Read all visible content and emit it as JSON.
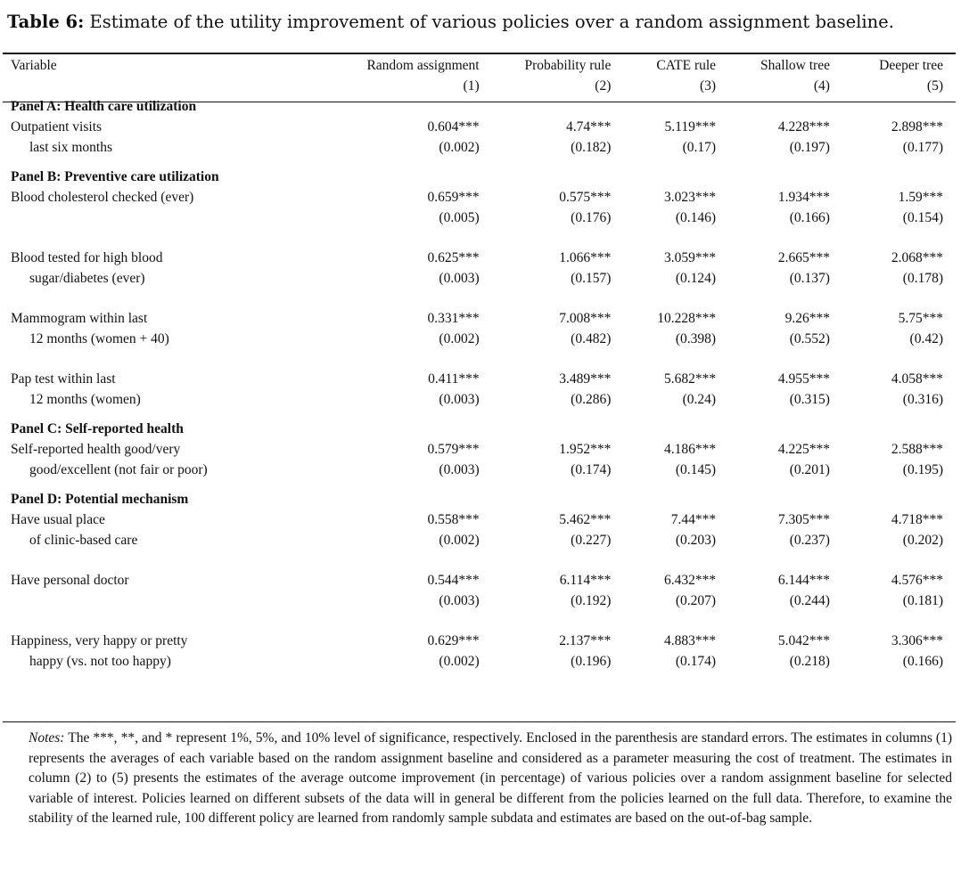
{
  "caption": {
    "label": "Table 6:",
    "text": "Estimate of the utility improvement of various policies over a random assignment baseline."
  },
  "header": {
    "variable": "Variable",
    "columns": [
      {
        "name": "Random assignment",
        "num": "(1)"
      },
      {
        "name": "Probability rule",
        "num": "(2)"
      },
      {
        "name": "CATE rule",
        "num": "(3)"
      },
      {
        "name": "Shallow tree",
        "num": "(4)"
      },
      {
        "name": "Deeper tree",
        "num": "(5)"
      }
    ]
  },
  "panels": [
    {
      "title": "Panel A: Health care utilization",
      "rows": [
        {
          "line1": "Outpatient visits",
          "line2": "last six months",
          "est": [
            "0.604***",
            "4.74***",
            "5.119***",
            "4.228***",
            "2.898***"
          ],
          "se": [
            "(0.002)",
            "(0.182)",
            "(0.17)",
            "(0.197)",
            "(0.177)"
          ]
        }
      ]
    },
    {
      "title": "Panel B: Preventive care utilization",
      "rows": [
        {
          "line1": "Blood cholesterol checked (ever)",
          "line2": "",
          "est": [
            "0.659***",
            "0.575***",
            "3.023***",
            "1.934***",
            "1.59***"
          ],
          "se": [
            "(0.005)",
            "(0.176)",
            "(0.146)",
            "(0.166)",
            "(0.154)"
          ]
        },
        {
          "line1": "Blood tested for high blood",
          "line2": "sugar/diabetes (ever)",
          "est": [
            "0.625***",
            "1.066***",
            "3.059***",
            "2.665***",
            "2.068***"
          ],
          "se": [
            "(0.003)",
            "(0.157)",
            "(0.124)",
            "(0.137)",
            "(0.178)"
          ]
        },
        {
          "line1": "Mammogram within last",
          "line2": "12 months (women + 40)",
          "est": [
            "0.331***",
            "7.008***",
            "10.228***",
            "9.26***",
            "5.75***"
          ],
          "se": [
            "(0.002)",
            "(0.482)",
            "(0.398)",
            "(0.552)",
            "(0.42)"
          ]
        },
        {
          "line1": "Pap test within last",
          "line2": "12 months (women)",
          "est": [
            "0.411***",
            "3.489***",
            "5.682***",
            "4.955***",
            "4.058***"
          ],
          "se": [
            "(0.003)",
            "(0.286)",
            "(0.24)",
            "(0.315)",
            "(0.316)"
          ]
        }
      ]
    },
    {
      "title": "Panel C: Self-reported health",
      "rows": [
        {
          "line1": "Self-reported health good/very",
          "line2": "good/excellent (not fair or poor)",
          "est": [
            "0.579***",
            "1.952***",
            "4.186***",
            "4.225***",
            "2.588***"
          ],
          "se": [
            "(0.003)",
            "(0.174)",
            "(0.145)",
            "(0.201)",
            "(0.195)"
          ]
        }
      ]
    },
    {
      "title": "Panel D: Potential mechanism",
      "rows": [
        {
          "line1": "Have usual place",
          "line2": "of clinic-based care",
          "est": [
            "0.558***",
            "5.462***",
            "7.44***",
            "7.305***",
            "4.718***"
          ],
          "se": [
            "(0.002)",
            "(0.227)",
            "(0.203)",
            "(0.237)",
            "(0.202)"
          ]
        },
        {
          "line1": "Have personal doctor",
          "line2": "",
          "est": [
            "0.544***",
            "6.114***",
            "6.432***",
            "6.144***",
            "4.576***"
          ],
          "se": [
            "(0.003)",
            "(0.192)",
            "(0.207)",
            "(0.244)",
            "(0.181)"
          ]
        },
        {
          "line1": "Happiness, very happy or pretty",
          "line2": "happy (vs. not too happy)",
          "est": [
            "0.629***",
            "2.137***",
            "4.883***",
            "5.042***",
            "3.306***"
          ],
          "se": [
            "(0.002)",
            "(0.196)",
            "(0.174)",
            "(0.218)",
            "(0.166)"
          ]
        }
      ]
    }
  ],
  "notes": {
    "label": "Notes:",
    "text": "The ***, **, and * represent 1%, 5%, and 10% level of significance, respectively. Enclosed in the parenthesis are standard errors. The estimates in columns (1) represents the averages of each variable based on the random assignment baseline and considered as a parameter measuring the cost of treatment. The estimates in column (2) to (5) presents the estimates of the average outcome improvement (in percentage) of various policies over a random assignment baseline for selected variable of interest. Policies learned on different subsets of the data will in general be different from the policies learned on the full data. Therefore, to examine the stability of the learned rule, 100 different policy are learned from randomly sample subdata and estimates are based on the out-of-bag sample."
  }
}
